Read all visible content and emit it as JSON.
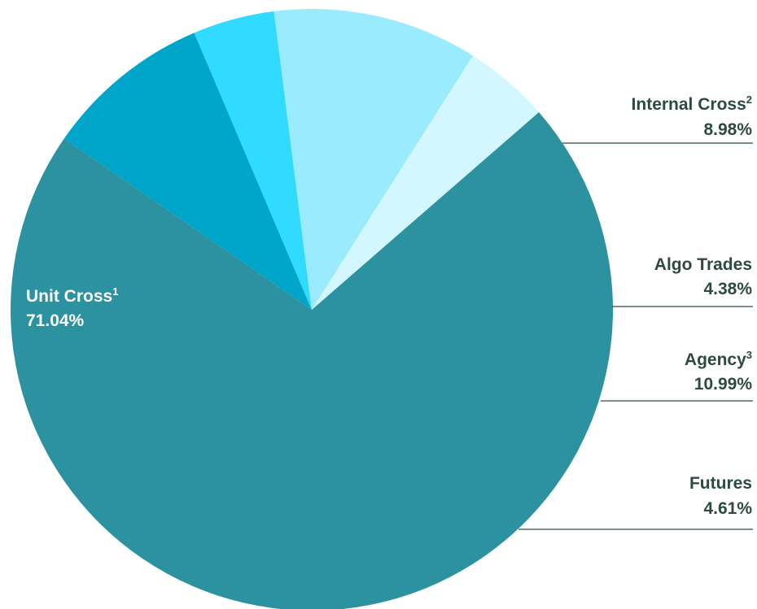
{
  "chart_data": {
    "type": "pie",
    "start_angle_deg": -55.3,
    "direction": "clockwise",
    "slices": [
      {
        "label": "Internal Cross",
        "superscript": "2",
        "value": 8.98,
        "value_label": "8.98%",
        "color": "#00A6CA"
      },
      {
        "label": "Algo Trades",
        "superscript": "",
        "value": 4.38,
        "value_label": "4.38%",
        "color": "#31DAFF"
      },
      {
        "label": "Agency",
        "superscript": "3",
        "value": 10.99,
        "value_label": "10.99%",
        "color": "#99EBFD"
      },
      {
        "label": "Futures",
        "superscript": "",
        "value": 4.61,
        "value_label": "4.61%",
        "color": "#D2F7FF"
      },
      {
        "label": "Unit Cross",
        "superscript": "1",
        "value": 71.04,
        "value_label": "71.04%",
        "color": "#2C92A0"
      }
    ],
    "label_color": "#2d4a3e",
    "leader_line_color": "#2d4a3e"
  }
}
